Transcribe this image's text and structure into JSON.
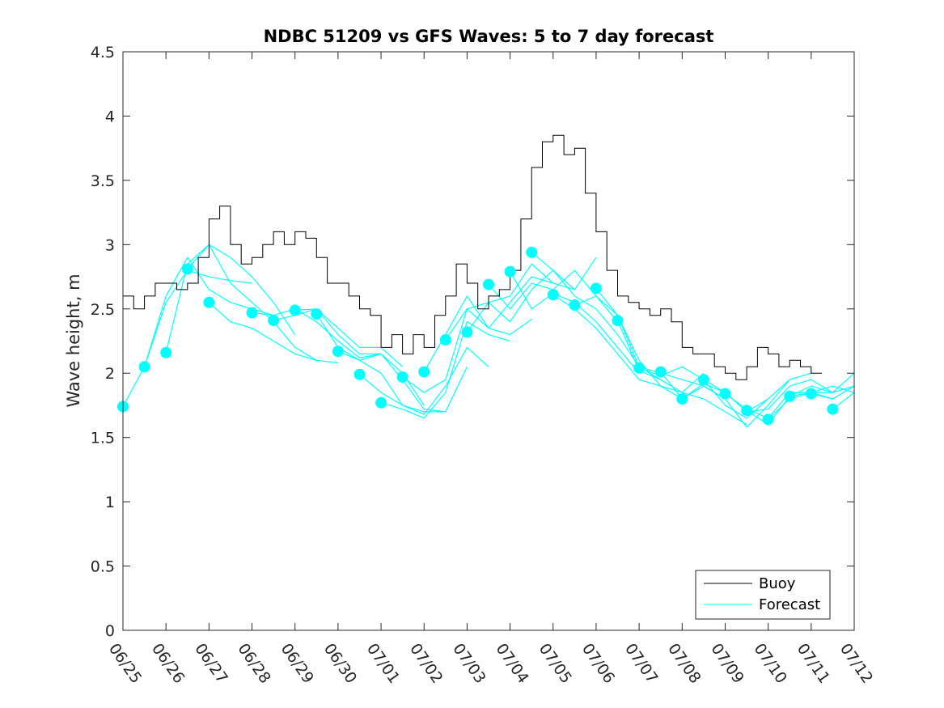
{
  "chart_data": {
    "type": "line",
    "title": "NDBC 51209 vs GFS Waves: 5 to 7 day forecast",
    "xlabel": "",
    "ylabel": "Wave height, m",
    "xlim": [
      0,
      17
    ],
    "ylim": [
      0,
      4.5
    ],
    "x_tick_labels": [
      "06/25",
      "06/26",
      "06/27",
      "06/28",
      "06/29",
      "06/30",
      "07/01",
      "07/02",
      "07/03",
      "07/04",
      "07/05",
      "07/06",
      "07/07",
      "07/08",
      "07/09",
      "07/10",
      "07/11",
      "07/12"
    ],
    "y_ticks": [
      0,
      0.5,
      1,
      1.5,
      2,
      2.5,
      3,
      3.5,
      4,
      4.5
    ],
    "y_tick_labels": [
      "0",
      "0.5",
      "1",
      "1.5",
      "2",
      "2.5",
      "3",
      "3.5",
      "4",
      "4.5"
    ],
    "grid": false,
    "legend": {
      "placement": "bottom-right",
      "entries": [
        "Buoy",
        "Forecast"
      ]
    },
    "colors": {
      "buoy": "#000000",
      "forecast": "#00ffff"
    },
    "series": [
      {
        "name": "Buoy",
        "x": [
          0,
          0.25,
          0.5,
          0.75,
          1,
          1.25,
          1.5,
          1.75,
          2,
          2.25,
          2.5,
          2.75,
          3,
          3.25,
          3.5,
          3.75,
          4,
          4.25,
          4.5,
          4.75,
          5,
          5.25,
          5.5,
          5.75,
          6,
          6.25,
          6.5,
          6.75,
          7,
          7.25,
          7.5,
          7.75,
          8,
          8.25,
          8.5,
          8.75,
          9,
          9.25,
          9.5,
          9.75,
          10,
          10.25,
          10.5,
          10.75,
          11,
          11.25,
          11.5,
          11.75,
          12,
          12.25,
          12.5,
          12.75,
          13,
          13.25,
          13.5,
          13.75,
          14,
          14.25,
          14.5,
          14.75,
          15,
          15.25,
          15.5,
          15.75,
          16,
          16.25
        ],
        "y": [
          2.6,
          2.5,
          2.6,
          2.7,
          2.7,
          2.65,
          2.7,
          2.9,
          3.2,
          3.3,
          3.0,
          2.85,
          2.9,
          3.0,
          3.1,
          3.0,
          3.1,
          3.05,
          2.9,
          2.7,
          2.7,
          2.6,
          2.5,
          2.45,
          2.2,
          2.3,
          2.15,
          2.3,
          2.2,
          2.45,
          2.6,
          2.85,
          2.7,
          2.5,
          2.6,
          2.65,
          2.8,
          3.2,
          3.6,
          3.8,
          3.85,
          3.7,
          3.75,
          3.4,
          3.1,
          2.8,
          2.6,
          2.55,
          2.5,
          2.45,
          2.5,
          2.4,
          2.2,
          2.15,
          2.15,
          2.05,
          2.0,
          1.95,
          2.05,
          2.2,
          2.15,
          2.05,
          2.1,
          2.05,
          2.0,
          2.0
        ]
      },
      {
        "name": "Forecast",
        "runs": [
          {
            "x": [
              0,
              0.5,
              1.0,
              1.5,
              2.0,
              2.5,
              3.0
            ],
            "y": [
              1.74,
              2.05,
              2.55,
              2.8,
              2.75,
              2.72,
              2.7
            ]
          },
          {
            "x": [
              0.5,
              1.0,
              1.5,
              2.0,
              2.5,
              3.0,
              3.5
            ],
            "y": [
              2.05,
              2.6,
              2.9,
              2.65,
              2.55,
              2.5,
              2.45
            ]
          },
          {
            "x": [
              1.0,
              1.5,
              2.0,
              2.5,
              3.0,
              3.5,
              4.0
            ],
            "y": [
              2.16,
              2.85,
              3.0,
              2.9,
              2.75,
              2.55,
              2.3
            ]
          },
          {
            "x": [
              1.5,
              2.0,
              2.5,
              3.0,
              3.5,
              4.0,
              4.5
            ],
            "y": [
              2.81,
              3.0,
              2.7,
              2.55,
              2.4,
              2.2,
              2.1
            ]
          },
          {
            "x": [
              2.0,
              2.5,
              3.0,
              3.5,
              4.0,
              4.5,
              5.0
            ],
            "y": [
              2.55,
              2.4,
              2.35,
              2.25,
              2.15,
              2.1,
              2.08
            ]
          },
          {
            "x": [
              3.0,
              3.5,
              4.0,
              4.5,
              5.0,
              5.5,
              6.0
            ],
            "y": [
              2.47,
              2.45,
              2.5,
              2.4,
              2.25,
              2.12,
              2.15
            ]
          },
          {
            "x": [
              3.5,
              4.0,
              4.5,
              5.0,
              5.5,
              6.0,
              6.5
            ],
            "y": [
              2.41,
              2.45,
              2.5,
              2.35,
              2.2,
              2.2,
              2.05
            ]
          },
          {
            "x": [
              4.0,
              4.5,
              5.0,
              5.5,
              6.0,
              6.5,
              7.0
            ],
            "y": [
              2.49,
              2.5,
              2.3,
              2.15,
              2.15,
              2.0,
              1.75
            ]
          },
          {
            "x": [
              4.5,
              5.0,
              5.5,
              6.0,
              6.5,
              7.0,
              7.5
            ],
            "y": [
              2.46,
              2.2,
              2.1,
              2.15,
              1.95,
              1.72,
              1.7
            ]
          },
          {
            "x": [
              5.0,
              5.5,
              6.0,
              6.5,
              7.0,
              7.5,
              8.0
            ],
            "y": [
              2.17,
              2.1,
              2.0,
              1.75,
              1.7,
              1.7,
              2.05
            ]
          },
          {
            "x": [
              5.5,
              6.0,
              6.5,
              7.0,
              7.5,
              8.0,
              8.5
            ],
            "y": [
              1.99,
              1.85,
              1.75,
              1.68,
              1.9,
              2.2,
              2.05
            ]
          },
          {
            "x": [
              6.0,
              6.5,
              7.0,
              7.5,
              8.0,
              8.5,
              9.0
            ],
            "y": [
              1.77,
              1.72,
              1.65,
              1.85,
              2.4,
              2.3,
              2.25
            ]
          },
          {
            "x": [
              6.5,
              7.0,
              7.5,
              8.0,
              8.5,
              9.0,
              9.5
            ],
            "y": [
              1.97,
              1.85,
              1.95,
              2.5,
              2.35,
              2.3,
              2.42
            ]
          },
          {
            "x": [
              7.0,
              7.5,
              8.0,
              8.5,
              9.0,
              9.5,
              10.0
            ],
            "y": [
              2.01,
              2.3,
              2.6,
              2.35,
              2.55,
              2.75,
              2.7
            ]
          },
          {
            "x": [
              7.5,
              8.0,
              8.5,
              9.0,
              9.5,
              10.0,
              10.5
            ],
            "y": [
              2.26,
              2.5,
              2.55,
              2.4,
              2.65,
              2.8,
              2.65
            ]
          },
          {
            "x": [
              8.0,
              8.5,
              9.0,
              9.5,
              10.0,
              10.5,
              11.0
            ],
            "y": [
              2.32,
              2.55,
              2.6,
              2.85,
              2.7,
              2.65,
              2.9
            ]
          },
          {
            "x": [
              8.5,
              9.0,
              9.5,
              10.0,
              10.5,
              11.0,
              11.5
            ],
            "y": [
              2.69,
              2.5,
              2.7,
              2.65,
              2.8,
              2.6,
              2.4
            ]
          },
          {
            "x": [
              9.0,
              9.5,
              10.0,
              10.5,
              11.0,
              11.5,
              12.0
            ],
            "y": [
              2.79,
              2.5,
              2.62,
              2.55,
              2.4,
              2.2,
              2.0
            ]
          },
          {
            "x": [
              9.5,
              10.0,
              10.5,
              11.0,
              11.5,
              12.0,
              12.5
            ],
            "y": [
              2.94,
              2.8,
              2.6,
              2.5,
              2.3,
              2.05,
              1.95
            ]
          },
          {
            "x": [
              10.0,
              10.5,
              11.0,
              11.5,
              12.0,
              12.5,
              13.0
            ],
            "y": [
              2.61,
              2.5,
              2.35,
              2.15,
              1.95,
              1.9,
              1.8
            ]
          },
          {
            "x": [
              10.5,
              11.0,
              11.5,
              12.0,
              12.5,
              13.0,
              13.5
            ],
            "y": [
              2.53,
              2.6,
              2.45,
              2.1,
              1.9,
              1.85,
              2.0
            ]
          },
          {
            "x": [
              11.0,
              11.5,
              12.0,
              12.5,
              13.0,
              13.5,
              14.0
            ],
            "y": [
              2.66,
              2.45,
              2.05,
              2.0,
              1.95,
              1.9,
              1.8
            ]
          },
          {
            "x": [
              11.5,
              12.0,
              12.5,
              13.0,
              13.5,
              14.0,
              14.5
            ],
            "y": [
              2.41,
              2.02,
              1.95,
              1.85,
              1.8,
              1.7,
              1.6
            ]
          },
          {
            "x": [
              12.0,
              12.5,
              13.0,
              13.5,
              14.0,
              14.5,
              15.0
            ],
            "y": [
              2.04,
              1.98,
              2.05,
              1.95,
              1.75,
              1.65,
              1.8
            ]
          },
          {
            "x": [
              12.5,
              13.0,
              13.5,
              14.0,
              14.5,
              15.0,
              15.5
            ],
            "y": [
              2.01,
              1.8,
              1.9,
              1.8,
              1.58,
              1.75,
              1.95
            ]
          },
          {
            "x": [
              13.0,
              13.5,
              14.0,
              14.5,
              15.0,
              15.5,
              16.0
            ],
            "y": [
              1.8,
              1.92,
              1.85,
              1.7,
              1.8,
              1.95,
              2.0
            ]
          },
          {
            "x": [
              13.5,
              14.0,
              14.5,
              15.0,
              15.5,
              16.0,
              16.5
            ],
            "y": [
              1.95,
              1.85,
              1.7,
              1.72,
              1.9,
              1.95,
              1.85
            ]
          },
          {
            "x": [
              14.0,
              14.5,
              15.0,
              15.5,
              16.0,
              16.5,
              17.0
            ],
            "y": [
              1.84,
              1.72,
              1.65,
              1.85,
              1.85,
              1.8,
              1.9
            ]
          },
          {
            "x": [
              14.5,
              15.0,
              15.5,
              16.0,
              16.5,
              17.0
            ],
            "y": [
              1.71,
              1.6,
              1.82,
              1.9,
              1.85,
              2.0
            ]
          },
          {
            "x": [
              15.0,
              15.5,
              16.0,
              16.5,
              17.0
            ],
            "y": [
              1.64,
              1.8,
              1.85,
              1.9,
              1.85
            ]
          },
          {
            "x": [
              15.5,
              16.0,
              16.5,
              17.0
            ],
            "y": [
              1.82,
              1.85,
              1.85,
              1.9
            ]
          },
          {
            "x": [
              16.0,
              16.5,
              17.0
            ],
            "y": [
              1.84,
              1.8,
              1.9
            ]
          },
          {
            "x": [
              16.5,
              17.0
            ],
            "y": [
              1.72,
              1.85
            ]
          }
        ],
        "markers": {
          "x": [
            0,
            0.5,
            1.0,
            1.5,
            2.0,
            3.0,
            3.5,
            4.0,
            4.5,
            5.0,
            5.5,
            6.0,
            6.5,
            7.0,
            7.5,
            8.0,
            8.5,
            9.0,
            9.5,
            10.0,
            10.5,
            11.0,
            11.5,
            12.0,
            12.5,
            13.0,
            13.5,
            14.0,
            14.5,
            15.0,
            15.5,
            16.0,
            16.5
          ],
          "y": [
            1.74,
            2.05,
            2.16,
            2.81,
            2.55,
            2.47,
            2.41,
            2.49,
            2.46,
            2.17,
            1.99,
            1.77,
            1.97,
            2.01,
            2.26,
            2.32,
            2.69,
            2.79,
            2.94,
            2.61,
            2.53,
            2.66,
            2.41,
            2.04,
            2.01,
            1.8,
            1.95,
            1.84,
            1.71,
            1.64,
            1.82,
            1.84,
            1.72
          ]
        }
      }
    ]
  }
}
